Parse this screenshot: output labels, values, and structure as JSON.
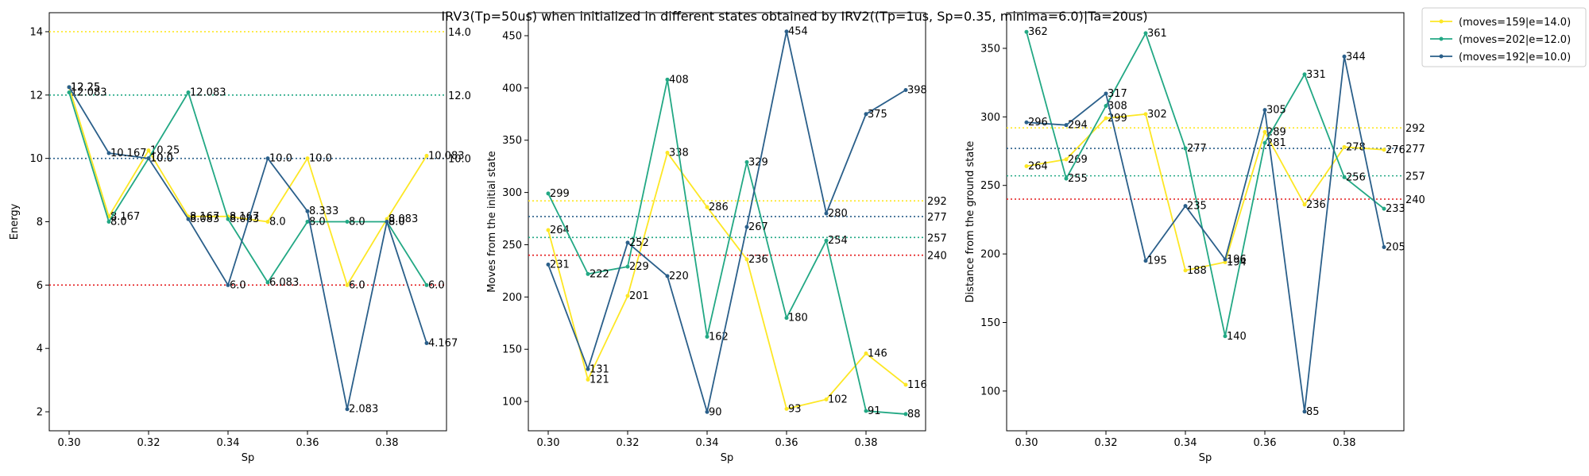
{
  "title": "IRV3(Tp=50us) when initialized in different states obtained by IRV2((Tp=1us, Sp=0.35, minima=6.0)|Ta=20us)",
  "colors": {
    "yellow": "#fde725",
    "green": "#22a884",
    "blue": "#2a5f8a",
    "red": "#e31a1c"
  },
  "legend": [
    {
      "label": "(moves=159|e=14.0)",
      "color": "#fde725"
    },
    {
      "label": "(moves=202|e=12.0)",
      "color": "#22a884"
    },
    {
      "label": "(moves=192|e=10.0)",
      "color": "#2a5f8a"
    }
  ],
  "chart_data": [
    {
      "type": "line",
      "xlabel": "Sp",
      "ylabel": "Energy",
      "x": [
        0.3,
        0.31,
        0.32,
        0.33,
        0.34,
        0.35,
        0.36,
        0.37,
        0.38,
        0.39
      ],
      "xlim": [
        0.295,
        0.395
      ],
      "ylim": [
        1.4,
        14.6
      ],
      "xticks": [
        "0.30",
        "0.32",
        "0.34",
        "0.36",
        "0.38"
      ],
      "xtick_values": [
        0.3,
        0.32,
        0.34,
        0.36,
        0.38
      ],
      "yticks": [
        2,
        4,
        6,
        8,
        10,
        12,
        14
      ],
      "series": [
        {
          "color": "#fde725",
          "values": [
            12.25,
            8.167,
            10.25,
            8.167,
            8.167,
            8.0,
            10.0,
            6.0,
            8.083,
            10.083
          ],
          "labels": [
            "12.25",
            "8.167",
            "10.25",
            "8.167",
            "8.167",
            "8.0",
            "10.0",
            "6.0",
            "8.083",
            "10.083"
          ]
        },
        {
          "color": "#22a884",
          "values": [
            12.083,
            8.0,
            10.0,
            12.083,
            8.083,
            6.083,
            8.0,
            8.0,
            8.0,
            6.0
          ],
          "labels": [
            "12.083",
            "8.0",
            "10.0",
            "12.083",
            "8.083",
            "6.083",
            "8.0",
            "8.0",
            "8.0",
            "6.0"
          ]
        },
        {
          "color": "#2a5f8a",
          "values": [
            12.25,
            10.167,
            10.0,
            8.083,
            6.0,
            10.0,
            8.333,
            2.083,
            8.0,
            4.167
          ],
          "labels": [
            "12.25",
            "10.167",
            "10.0",
            "8.083",
            "6.0",
            "10.0",
            "8.333",
            "2.083",
            "8.0",
            "4.167"
          ]
        }
      ],
      "hlines": [
        {
          "y": 14.0,
          "color": "#fde725",
          "label": "14.0"
        },
        {
          "y": 12.0,
          "color": "#22a884",
          "label": "12.0"
        },
        {
          "y": 10.0,
          "color": "#2a5f8a",
          "label": "10.0"
        },
        {
          "y": 6.0,
          "color": "#e31a1c",
          "label": ""
        }
      ]
    },
    {
      "type": "line",
      "xlabel": "Sp",
      "ylabel": "Moves from the initial state",
      "x": [
        0.3,
        0.31,
        0.32,
        0.33,
        0.34,
        0.35,
        0.36,
        0.37,
        0.38,
        0.39
      ],
      "xlim": [
        0.295,
        0.395
      ],
      "ylim": [
        72,
        472
      ],
      "xticks": [
        "0.30",
        "0.32",
        "0.34",
        "0.36",
        "0.38"
      ],
      "xtick_values": [
        0.3,
        0.32,
        0.34,
        0.36,
        0.38
      ],
      "yticks": [
        100,
        150,
        200,
        250,
        300,
        350,
        400,
        450
      ],
      "series": [
        {
          "color": "#fde725",
          "values": [
            264,
            121,
            201,
            338,
            286,
            236,
            93,
            102,
            146,
            116
          ],
          "labels": [
            "264",
            "121",
            "201",
            "338",
            "286",
            "236",
            "93",
            "102",
            "146",
            "116"
          ]
        },
        {
          "color": "#22a884",
          "values": [
            299,
            222,
            229,
            408,
            162,
            329,
            180,
            254,
            91,
            88
          ],
          "labels": [
            "299",
            "222",
            "229",
            "408",
            "162",
            "329",
            "180",
            "254",
            "91",
            "88"
          ]
        },
        {
          "color": "#2a5f8a",
          "values": [
            231,
            131,
            252,
            220,
            90,
            267,
            454,
            280,
            375,
            398
          ],
          "labels": [
            "231",
            "131",
            "252",
            "220",
            "90",
            "267",
            "454",
            "280",
            "375",
            "398"
          ]
        }
      ],
      "hlines": [
        {
          "y": 292,
          "color": "#fde725",
          "label": "292"
        },
        {
          "y": 277,
          "color": "#2a5f8a",
          "label": "277"
        },
        {
          "y": 257,
          "color": "#22a884",
          "label": "257"
        },
        {
          "y": 240,
          "color": "#e31a1c",
          "label": "240"
        }
      ]
    },
    {
      "type": "line",
      "xlabel": "Sp",
      "ylabel": "Distance from the ground state",
      "x": [
        0.3,
        0.31,
        0.32,
        0.33,
        0.34,
        0.35,
        0.36,
        0.37,
        0.38,
        0.39
      ],
      "xlim": [
        0.295,
        0.395
      ],
      "ylim": [
        71,
        376
      ],
      "xticks": [
        "0.30",
        "0.32",
        "0.34",
        "0.36",
        "0.38"
      ],
      "xtick_values": [
        0.3,
        0.32,
        0.34,
        0.36,
        0.38
      ],
      "yticks": [
        100,
        150,
        200,
        250,
        300,
        350
      ],
      "series": [
        {
          "color": "#fde725",
          "values": [
            264,
            269,
            299,
            302,
            188,
            194,
            289,
            236,
            278,
            276
          ],
          "labels": [
            "264",
            "269",
            "299",
            "302",
            "188",
            "194",
            "289",
            "236",
            "278",
            "276"
          ]
        },
        {
          "color": "#22a884",
          "values": [
            362,
            255,
            308,
            361,
            277,
            140,
            281,
            331,
            256,
            233
          ],
          "labels": [
            "362",
            "255",
            "308",
            "361",
            "277",
            "140",
            "281",
            "331",
            "256",
            "233"
          ]
        },
        {
          "color": "#2a5f8a",
          "values": [
            296,
            294,
            317,
            195,
            235,
            196,
            305,
            85,
            344,
            205
          ],
          "labels": [
            "296",
            "294",
            "317",
            "195",
            "235",
            "196",
            "305",
            "85",
            "344",
            "205"
          ]
        }
      ],
      "hlines": [
        {
          "y": 292,
          "color": "#fde725",
          "label": "292"
        },
        {
          "y": 277,
          "color": "#2a5f8a",
          "label": "277"
        },
        {
          "y": 257,
          "color": "#22a884",
          "label": "257"
        },
        {
          "y": 240,
          "color": "#e31a1c",
          "label": "240"
        }
      ]
    }
  ]
}
